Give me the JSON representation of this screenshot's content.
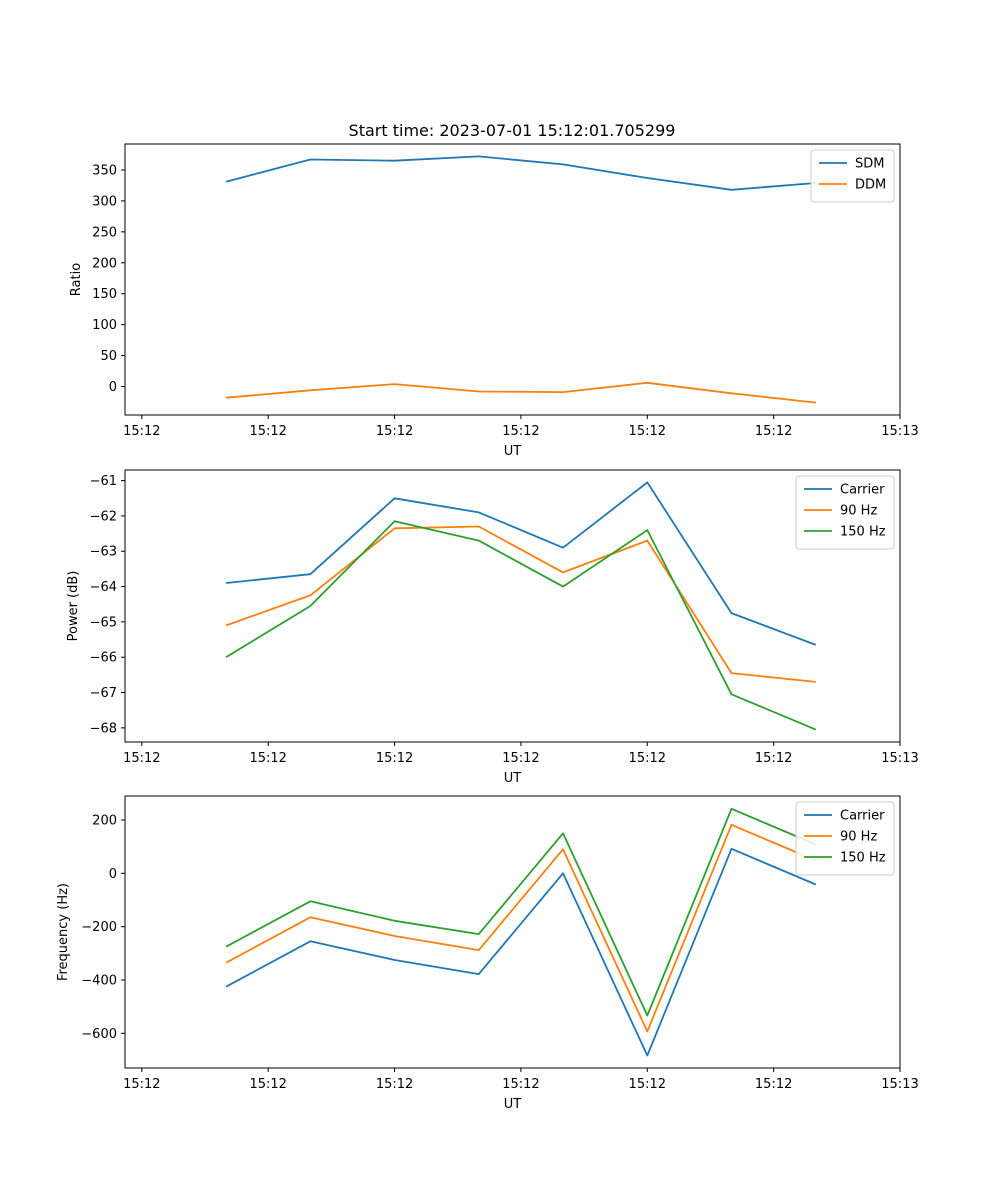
{
  "figure_title": "Start time: 2023-07-01 15:12:01.705299",
  "colors": {
    "blue": "#1f77b4",
    "orange": "#ff7f0e",
    "green": "#2ca02c"
  },
  "chart_data": [
    {
      "type": "line",
      "xlabel": "UT",
      "ylabel": "Ratio",
      "x": [
        0.5,
        1.0,
        1.5,
        2.0,
        2.5,
        3.0,
        3.5,
        4.0
      ],
      "xlim": [
        -0.1,
        4.5
      ],
      "x_ticks": [
        0,
        0.75,
        1.5,
        2.25,
        3.0,
        3.75,
        4.5
      ],
      "x_tick_labels": [
        "15:12",
        "15:12",
        "15:12",
        "15:12",
        "15:12",
        "15:12",
        "15:13"
      ],
      "ylim": [
        -46,
        392
      ],
      "y_ticks": [
        0,
        50,
        100,
        150,
        200,
        250,
        300,
        350
      ],
      "y_tick_labels": [
        "0",
        "50",
        "100",
        "150",
        "200",
        "250",
        "300",
        "350"
      ],
      "legend_position": "upper right",
      "series": [
        {
          "name": "SDM",
          "color": "#1f77b4",
          "values": [
            331,
            367,
            365,
            372,
            359,
            337,
            318,
            329
          ]
        },
        {
          "name": "DDM",
          "color": "#ff7f0e",
          "values": [
            -18,
            -6,
            4,
            -8,
            -9,
            6,
            -11,
            -26
          ]
        }
      ]
    },
    {
      "type": "line",
      "xlabel": "UT",
      "ylabel": "Power (dB)",
      "x": [
        0.5,
        1.0,
        1.5,
        2.0,
        2.5,
        3.0,
        3.5,
        4.0
      ],
      "xlim": [
        -0.1,
        4.5
      ],
      "x_ticks": [
        0,
        0.75,
        1.5,
        2.25,
        3.0,
        3.75,
        4.5
      ],
      "x_tick_labels": [
        "15:12",
        "15:12",
        "15:12",
        "15:12",
        "15:12",
        "15:12",
        "15:13"
      ],
      "ylim": [
        -68.4,
        -60.7
      ],
      "y_ticks": [
        -68,
        -67,
        -66,
        -65,
        -64,
        -63,
        -62,
        -61
      ],
      "y_tick_labels": [
        "−68",
        "−67",
        "−66",
        "−65",
        "−64",
        "−63",
        "−62",
        "−61"
      ],
      "legend_position": "upper right",
      "series": [
        {
          "name": "Carrier",
          "color": "#1f77b4",
          "values": [
            -63.9,
            -63.65,
            -61.5,
            -61.9,
            -62.9,
            -61.05,
            -64.75,
            -65.65
          ]
        },
        {
          "name": "90 Hz",
          "color": "#ff7f0e",
          "values": [
            -65.1,
            -64.25,
            -62.35,
            -62.3,
            -63.6,
            -62.7,
            -66.45,
            -66.7
          ]
        },
        {
          "name": "150 Hz",
          "color": "#2ca02c",
          "values": [
            -66.0,
            -64.55,
            -62.15,
            -62.7,
            -64.0,
            -62.4,
            -67.05,
            -68.05
          ]
        }
      ]
    },
    {
      "type": "line",
      "xlabel": "UT",
      "ylabel": "Frequency (Hz)",
      "x": [
        0.5,
        1.0,
        1.5,
        2.0,
        2.5,
        3.0,
        3.5,
        4.0
      ],
      "xlim": [
        -0.1,
        4.5
      ],
      "x_ticks": [
        0,
        0.75,
        1.5,
        2.25,
        3.0,
        3.75,
        4.5
      ],
      "x_tick_labels": [
        "15:12",
        "15:12",
        "15:12",
        "15:12",
        "15:12",
        "15:12",
        "15:13"
      ],
      "ylim": [
        -730,
        290
      ],
      "y_ticks": [
        -600,
        -400,
        -200,
        0,
        200
      ],
      "y_tick_labels": [
        "−600",
        "−400",
        "−200",
        "0",
        "200"
      ],
      "legend_position": "upper right",
      "series": [
        {
          "name": "Carrier",
          "color": "#1f77b4",
          "values": [
            -425,
            -255,
            -325,
            -378,
            0,
            -683,
            92,
            -42
          ]
        },
        {
          "name": "90 Hz",
          "color": "#ff7f0e",
          "values": [
            -335,
            -165,
            -235,
            -288,
            90,
            -593,
            182,
            48
          ]
        },
        {
          "name": "150 Hz",
          "color": "#2ca02c",
          "values": [
            -275,
            -105,
            -178,
            -228,
            150,
            -533,
            242,
            108
          ]
        }
      ]
    }
  ]
}
